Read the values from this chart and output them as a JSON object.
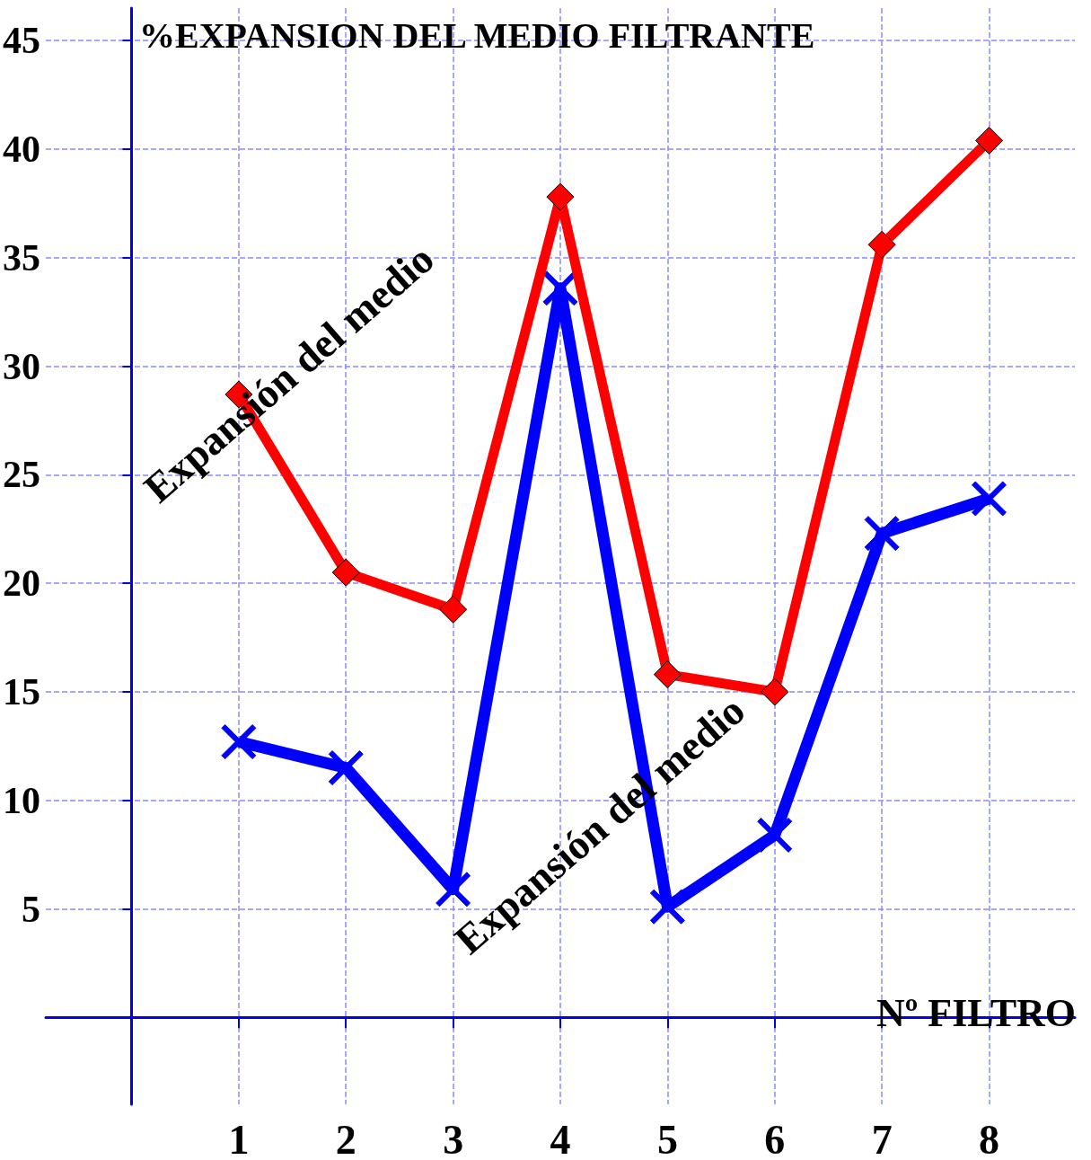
{
  "chart_data": {
    "type": "line",
    "title": "%EXPANSION DEL MEDIO FILTRANTE",
    "xlabel": "Nº FILTRO",
    "x": [
      1,
      2,
      3,
      4,
      5,
      6,
      7,
      8
    ],
    "series": [
      {
        "name": "Expansión del medio",
        "color": "#ff0000",
        "marker": "diamond",
        "values": [
          28.7,
          20.5,
          18.8,
          37.8,
          15.8,
          15.0,
          35.6,
          40.4
        ]
      },
      {
        "name": "Expansión del medio",
        "color": "#0000ff",
        "marker": "cross",
        "values": [
          12.7,
          11.5,
          5.9,
          33.6,
          5.1,
          8.4,
          22.3,
          23.9
        ]
      }
    ],
    "xlim": [
      -0.8,
      8.8
    ],
    "xticks": [
      1,
      2,
      3,
      4,
      5,
      6,
      7,
      8
    ],
    "ylim": [
      -4,
      46.5
    ],
    "yticks": [
      5,
      10,
      15,
      20,
      25,
      30,
      35,
      40,
      45
    ],
    "grid": true,
    "legend": false,
    "line_style": "solid"
  }
}
